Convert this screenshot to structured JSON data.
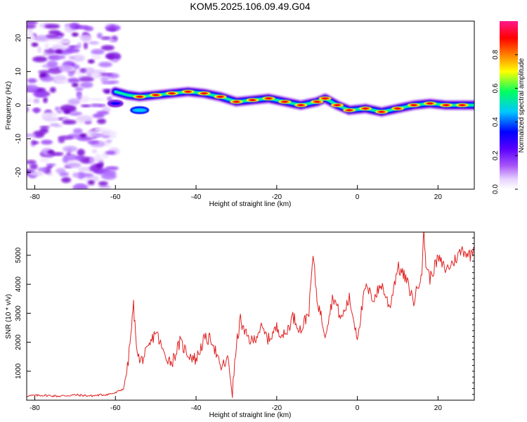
{
  "title": "KOM5.2025.106.09.49.G04",
  "chart_data": [
    {
      "type": "heatmap",
      "title": "KOM5.2025.106.09.49.G04",
      "xlabel": "Height of straight line (km)",
      "ylabel": "Frequency (Hz)",
      "xlim": [
        -82,
        29
      ],
      "ylim": [
        -25,
        25
      ],
      "xticks": [
        -80,
        -60,
        -40,
        -20,
        0,
        20
      ],
      "yticks": [
        -20,
        -10,
        0,
        10,
        20
      ],
      "colorbar": {
        "label": "Normalized spectral amplitude",
        "range": [
          0,
          1
        ],
        "ticks": [
          "0.0",
          "0.2",
          "0.4",
          "0.6",
          "0.8"
        ],
        "colors": [
          "#ffffff",
          "#c4a0f8",
          "#8a2be2",
          "#0000ff",
          "#00c8ff",
          "#00ff70",
          "#ffff00",
          "#ff8000",
          "#ff0000",
          "#ff1493"
        ]
      },
      "ridge": {
        "name": "frequency trace",
        "x": [
          -60,
          -57,
          -54,
          -50,
          -46,
          -42,
          -38,
          -34,
          -30,
          -26,
          -22,
          -18,
          -14,
          -10,
          -8,
          -5,
          -2,
          2,
          6,
          10,
          14,
          18,
          22,
          26,
          29
        ],
        "y": [
          4,
          3,
          2.5,
          3,
          3.5,
          4,
          3.5,
          2.5,
          1,
          1.5,
          2,
          1,
          0,
          1,
          2,
          0,
          -1.5,
          -1,
          -2,
          -1,
          0,
          0.5,
          0,
          0,
          0
        ]
      },
      "noise_region": {
        "x_range": [
          -82,
          -60
        ],
        "y_range": [
          -25,
          25
        ]
      }
    },
    {
      "type": "line",
      "xlabel": "Height of straight line (km)",
      "ylabel": "SNR (10 * v/v)",
      "xlim": [
        -82,
        29
      ],
      "ylim": [
        0,
        5800
      ],
      "xticks": [
        -80,
        -60,
        -40,
        -20,
        0,
        20
      ],
      "yticks": [
        1000,
        2000,
        3000,
        4000,
        5000
      ],
      "line_color": "#e02020",
      "series": [
        {
          "x": [
            -82,
            -78,
            -74,
            -70,
            -66,
            -62,
            -60,
            -58,
            -57,
            -56,
            -55.5,
            -55,
            -54,
            -52,
            -50,
            -48,
            -46,
            -44,
            -42,
            -40,
            -38,
            -36,
            -34,
            -32,
            -31,
            -30,
            -29,
            -28,
            -26,
            -24,
            -22,
            -20,
            -18,
            -16,
            -14,
            -12,
            -11,
            -10,
            -8,
            -6,
            -4,
            -2,
            0,
            2,
            4,
            6,
            8,
            10,
            12,
            14,
            16,
            16.5,
            17,
            18,
            20,
            22,
            24,
            26,
            28,
            29
          ],
          "y": [
            150,
            170,
            140,
            180,
            150,
            200,
            250,
            400,
            1100,
            2500,
            3300,
            2200,
            1300,
            1700,
            2400,
            1600,
            1300,
            2000,
            1600,
            1400,
            2100,
            2100,
            1100,
            1400,
            250,
            1900,
            2800,
            2300,
            2000,
            2500,
            2100,
            2500,
            2200,
            2900,
            2400,
            3100,
            5000,
            3500,
            2300,
            3600,
            2800,
            3500,
            2200,
            3900,
            3500,
            4000,
            3200,
            4600,
            4200,
            3400,
            4500,
            5800,
            4700,
            4200,
            4900,
            4500,
            4800,
            5200,
            5000,
            5300
          ]
        }
      ]
    }
  ]
}
